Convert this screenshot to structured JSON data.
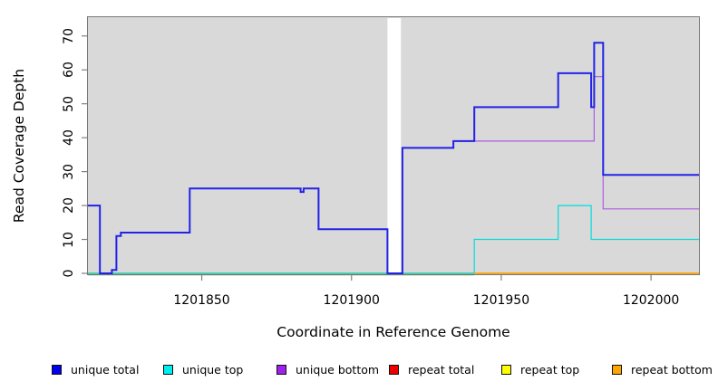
{
  "chart_data": {
    "type": "line",
    "subtype": "step",
    "title": "",
    "xlabel": "Coordinate in Reference Genome",
    "ylabel": "Read Coverage Depth",
    "xlim": [
      1201812,
      1202016
    ],
    "ylim": [
      0,
      75
    ],
    "x_ticks": [
      "1201850",
      "1201900",
      "1201950",
      "1202000"
    ],
    "x_tick_values": [
      1201850,
      1201900,
      1201950,
      1202000
    ],
    "y_ticks": [
      "0",
      "10",
      "20",
      "30",
      "40",
      "50",
      "60",
      "70"
    ],
    "y_tick_values": [
      0,
      10,
      20,
      30,
      40,
      50,
      60,
      70
    ],
    "grid": "off",
    "plot_background": "#D9D9D9",
    "frame_color": "#777777",
    "tick_color": "#808080",
    "gap_band": {
      "x0": 1201912,
      "x1": 1201916.5,
      "color": "#FFFFFF"
    },
    "baseline_blend": {
      "color": "#5FB567",
      "x0": 1201812,
      "x1": 1201941,
      "y": 0,
      "layer": 4,
      "width": 1.5
    },
    "series": [
      {
        "name": "repeat total",
        "color": "#E00000",
        "layer": 1,
        "width": 1.2,
        "steps": [
          [
            1201812,
            0
          ]
        ]
      },
      {
        "name": "repeat top",
        "color": "#F0F000",
        "layer": 2,
        "width": 1.2,
        "steps": [
          [
            1201812,
            0
          ]
        ]
      },
      {
        "name": "unique top",
        "color": "#00DCDC",
        "layer": 3,
        "width": 1.2,
        "steps": [
          [
            1201812,
            0
          ],
          [
            1201941,
            10
          ],
          [
            1201969,
            20
          ],
          [
            1201980,
            10
          ]
        ]
      },
      {
        "name": "repeat bottom",
        "color": "#FFA500",
        "layer": 5,
        "width": 1.5,
        "steps": [
          [
            1201941,
            0
          ]
        ]
      },
      {
        "name": "unique bottom",
        "color": "#AE5BE2",
        "layer": 6,
        "width": 1.2,
        "steps": [
          [
            1201812,
            20
          ],
          [
            1201816,
            0
          ],
          [
            1201820,
            1
          ],
          [
            1201821.5,
            11
          ],
          [
            1201823,
            12
          ],
          [
            1201846,
            25
          ],
          [
            1201883,
            24
          ],
          [
            1201884,
            25
          ],
          [
            1201889,
            13
          ],
          [
            1201912,
            0
          ],
          [
            1201917,
            37
          ],
          [
            1201934,
            39
          ],
          [
            1201981,
            58
          ],
          [
            1201984,
            19
          ]
        ]
      },
      {
        "name": "unique total",
        "color": "#2222E8",
        "layer": 7,
        "width": 2,
        "steps": [
          [
            1201812,
            20
          ],
          [
            1201816,
            0
          ],
          [
            1201820,
            1
          ],
          [
            1201821.5,
            11
          ],
          [
            1201823,
            12
          ],
          [
            1201846,
            25
          ],
          [
            1201883,
            24
          ],
          [
            1201884,
            25
          ],
          [
            1201889,
            13
          ],
          [
            1201912,
            0
          ],
          [
            1201917,
            37
          ],
          [
            1201934,
            39
          ],
          [
            1201941,
            49
          ],
          [
            1201969,
            59
          ],
          [
            1201980,
            49
          ],
          [
            1201981,
            68
          ],
          [
            1201984,
            29
          ]
        ]
      }
    ],
    "legend_position": "bottom",
    "legend": [
      {
        "label": "unique total",
        "color": "#0000EE"
      },
      {
        "label": "unique top",
        "color": "#00EEEE"
      },
      {
        "label": "unique bottom",
        "color": "#A020F0"
      },
      {
        "label": "repeat total",
        "color": "#EE0000"
      },
      {
        "label": "repeat top",
        "color": "#FFFF00"
      },
      {
        "label": "repeat bottom",
        "color": "#FFA500"
      }
    ]
  }
}
